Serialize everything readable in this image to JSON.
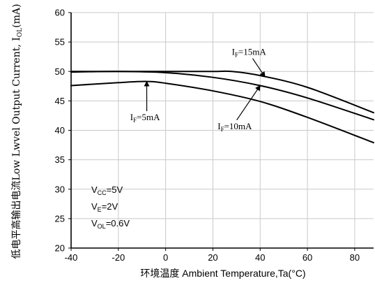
{
  "chart_data": {
    "type": "line",
    "xlabel": "环境温度 Ambient Temperature,Ta(°C)",
    "ylabel_cn": "低电平高输出电流",
    "ylabel_en_prefix": "Low Lwvel Output Current, I",
    "ylabel_en_sub": "OL",
    "ylabel_en_suffix": "(mA)",
    "xlim": [
      -40,
      88
    ],
    "ylim": [
      20,
      60
    ],
    "xticks": [
      -40,
      -20,
      0,
      20,
      40,
      60,
      80
    ],
    "yticks": [
      20,
      25,
      30,
      35,
      40,
      45,
      50,
      55,
      60
    ],
    "grid": true,
    "series": [
      {
        "label_main": "I",
        "label_sub": "F",
        "label_rest": "=15mA",
        "points": [
          [
            -40,
            50.0
          ],
          [
            -20,
            50.0
          ],
          [
            0,
            50.0
          ],
          [
            20,
            50.0
          ],
          [
            28,
            50.0
          ],
          [
            40,
            49.3
          ],
          [
            60,
            47.3
          ],
          [
            88,
            43.0
          ]
        ]
      },
      {
        "label_main": "I",
        "label_sub": "F",
        "label_rest": "=10mA",
        "points": [
          [
            -40,
            49.9
          ],
          [
            -20,
            50.0
          ],
          [
            0,
            49.8
          ],
          [
            20,
            49.0
          ],
          [
            40,
            47.6
          ],
          [
            60,
            45.5
          ],
          [
            88,
            41.8
          ]
        ]
      },
      {
        "label_main": "I",
        "label_sub": "F",
        "label_rest": "=5mA",
        "points": [
          [
            -40,
            47.6
          ],
          [
            -20,
            48.1
          ],
          [
            -8,
            48.3
          ],
          [
            0,
            48.0
          ],
          [
            20,
            46.7
          ],
          [
            40,
            44.9
          ],
          [
            60,
            42.2
          ],
          [
            88,
            37.9
          ]
        ]
      }
    ],
    "annotations": [
      {
        "name": "label-if15",
        "series": 0,
        "text_x": 28,
        "text_y": 52.8,
        "arrow_to": [
          42,
          49.1
        ]
      },
      {
        "name": "label-if10",
        "series": 1,
        "text_x": 22,
        "text_y": 40.2,
        "arrow_to": [
          40,
          47.6
        ]
      },
      {
        "name": "label-if5",
        "series": 2,
        "text_x": -15,
        "text_y": 41.7,
        "arrow_to": [
          -8,
          48.3
        ]
      }
    ],
    "conditions": [
      {
        "main": "V",
        "sub": "CC",
        "rest": "=5V"
      },
      {
        "main": "V",
        "sub": "E",
        "rest": "=2V"
      },
      {
        "main": "V",
        "sub": "OL",
        "rest": "=0.6V"
      }
    ]
  }
}
